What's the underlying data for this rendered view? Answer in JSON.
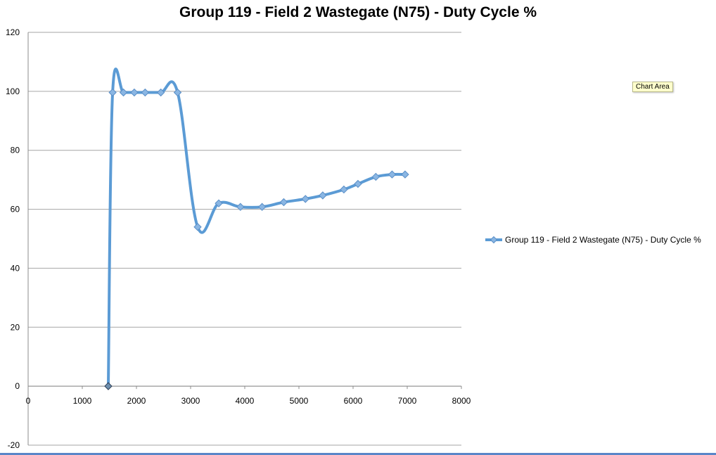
{
  "chart_data": {
    "type": "line",
    "title": "Group 119 - Field 2 Wastegate (N75) - Duty Cycle  %",
    "xlabel": "",
    "ylabel": "",
    "xlim": [
      0,
      8000
    ],
    "ylim": [
      -20,
      120
    ],
    "x_ticks": [
      "0",
      "1000",
      "2000",
      "3000",
      "4000",
      "5000",
      "6000",
      "7000",
      "8000"
    ],
    "y_ticks": [
      "-20",
      "0",
      "20",
      "40",
      "60",
      "80",
      "100",
      "120"
    ],
    "grid": "horizontal",
    "legend_position": "right",
    "smooth": true,
    "series": [
      {
        "name": "Group 119 - Field 2 Wastegate (N75) - Duty Cycle  %",
        "color": "#5b9bd5",
        "marker": "diamond",
        "points": [
          {
            "x": 1480,
            "y": 0
          },
          {
            "x": 1560,
            "y": 99.6
          },
          {
            "x": 1760,
            "y": 99.6
          },
          {
            "x": 1960,
            "y": 99.6
          },
          {
            "x": 2160,
            "y": 99.6
          },
          {
            "x": 2450,
            "y": 99.6
          },
          {
            "x": 2760,
            "y": 99.6
          },
          {
            "x": 3130,
            "y": 54
          },
          {
            "x": 3520,
            "y": 62
          },
          {
            "x": 3920,
            "y": 60.8
          },
          {
            "x": 4320,
            "y": 60.8
          },
          {
            "x": 4720,
            "y": 62.4
          },
          {
            "x": 5120,
            "y": 63.5
          },
          {
            "x": 5440,
            "y": 64.7
          },
          {
            "x": 5830,
            "y": 66.7
          },
          {
            "x": 6090,
            "y": 68.6
          },
          {
            "x": 6420,
            "y": 71
          },
          {
            "x": 6720,
            "y": 71.8
          },
          {
            "x": 6960,
            "y": 71.8
          }
        ]
      }
    ]
  },
  "tooltip": {
    "label": "Chart Area"
  }
}
